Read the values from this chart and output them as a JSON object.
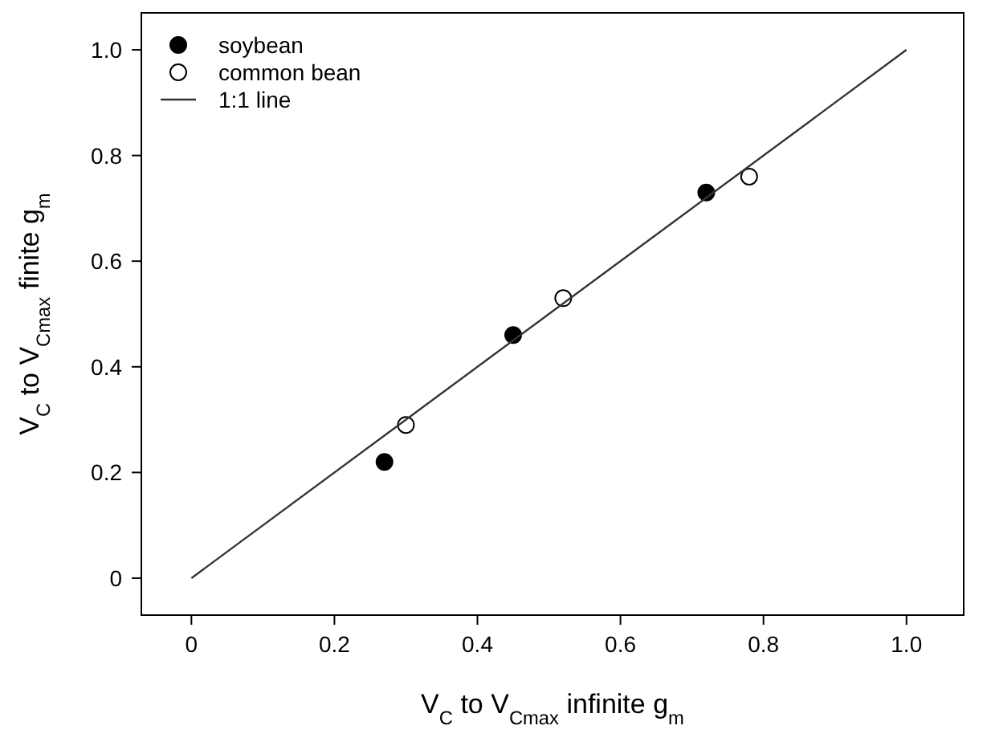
{
  "chart_data": {
    "type": "scatter",
    "xlabel": "V$_{C}$ to V$_{Cmax}$ infinite g$_{m}$",
    "ylabel": "V$_{C}$ to V$_{Cmax}$ finite g$_{m}$",
    "xlim": [
      -0.07,
      1.08
    ],
    "ylim": [
      -0.07,
      1.07
    ],
    "xticks": [
      0,
      0.2,
      0.4,
      0.6,
      0.8,
      {
        "value": 1,
        "label": "1.0"
      }
    ],
    "yticks": [
      0,
      0.2,
      0.4,
      0.6,
      0.8,
      {
        "value": 1,
        "label": "1.0"
      }
    ],
    "legend": "top left",
    "grid": false,
    "series": [
      {
        "name": "soybean",
        "color": "#000000",
        "marker": "circle",
        "x": [
          0.27,
          0.45,
          0.72
        ],
        "values": [
          0.22,
          0.46,
          0.73
        ]
      },
      {
        "name": "common bean",
        "color": "#ffffff",
        "marker": "circle",
        "x": [
          0.3,
          0.52,
          0.78
        ],
        "values": [
          0.29,
          0.53,
          0.76
        ]
      },
      {
        "name": "1:1 line",
        "type": "line",
        "color": "#333333",
        "x": [
          0,
          1
        ],
        "values": [
          0,
          1
        ],
        "marker": "none",
        "line_style": "solid"
      }
    ]
  }
}
